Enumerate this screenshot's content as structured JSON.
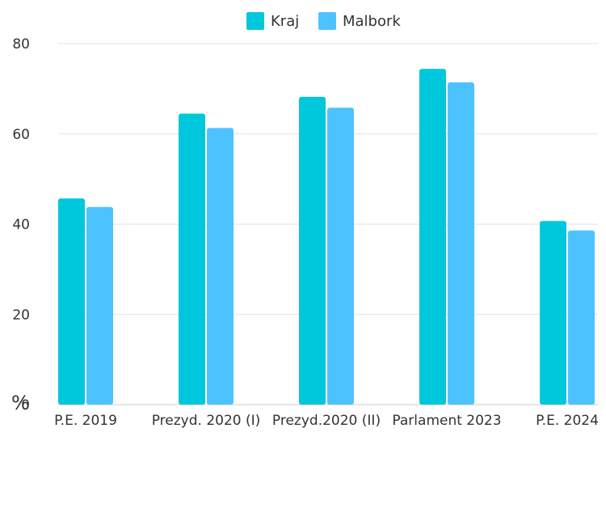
{
  "chart_data": {
    "type": "bar",
    "title": "",
    "xlabel": "",
    "ylabel": "",
    "unit_label": "%",
    "categories": [
      "P.E. 2019",
      "Prezyd. 2020 (I)",
      "Prezyd.2020 (II)",
      "Parlament 2023",
      "P.E. 2024"
    ],
    "series": [
      {
        "name": "Kraj",
        "color": "#00C8DC",
        "values": [
          45.7,
          64.5,
          68.2,
          74.4,
          40.7
        ]
      },
      {
        "name": "Malbork",
        "color": "#4CC3FF",
        "values": [
          43.8,
          61.3,
          65.8,
          71.4,
          38.6
        ]
      }
    ],
    "ylim": [
      0,
      80
    ],
    "yticks": [
      0,
      20,
      40,
      60,
      80
    ],
    "grid": true,
    "legend_position": "top-center"
  }
}
